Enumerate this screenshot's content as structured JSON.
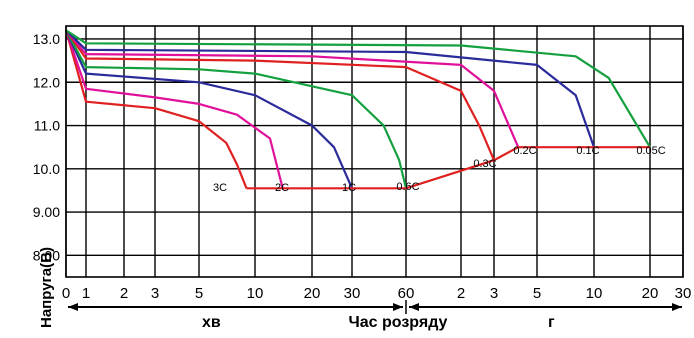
{
  "chart_data": {
    "type": "line",
    "title": "",
    "ylabel": "Напруга(В)",
    "xlabel": "Час розряду",
    "x_unit_minutes": "хв",
    "x_unit_hours": "г",
    "x_scale": "log",
    "ylim": [
      7.5,
      13.3
    ],
    "y_ticks": [
      "8.00",
      "9.00",
      "10.0",
      "11.0",
      "12.0",
      "13.0"
    ],
    "x_ticks_minutes": [
      "0",
      "1",
      "2",
      "3",
      "5",
      "10",
      "20",
      "30",
      "60"
    ],
    "x_ticks_hours": [
      "2",
      "3",
      "5",
      "10",
      "20",
      "30"
    ],
    "grid": true,
    "end_curve": {
      "name": "",
      "color": "#e02020",
      "points": [
        [
          9,
          9.55
        ],
        [
          60,
          9.55
        ],
        [
          180,
          10.2
        ],
        [
          240,
          10.5
        ],
        [
          1200,
          10.5
        ]
      ]
    },
    "series": [
      {
        "name": "3C",
        "color": "#e02020",
        "points": [
          [
            0,
            13.2
          ],
          [
            1,
            11.55
          ],
          [
            3,
            11.4
          ],
          [
            5,
            11.1
          ],
          [
            7,
            10.6
          ],
          [
            8,
            10.1
          ],
          [
            9,
            9.55
          ]
        ]
      },
      {
        "name": "2C",
        "color": "#e0109a",
        "points": [
          [
            0,
            13.2
          ],
          [
            1,
            11.85
          ],
          [
            3,
            11.65
          ],
          [
            5,
            11.5
          ],
          [
            8,
            11.25
          ],
          [
            12,
            10.7
          ],
          [
            14,
            9.55
          ]
        ]
      },
      {
        "name": "1C",
        "color": "#2a2a9a",
        "points": [
          [
            0,
            13.2
          ],
          [
            1,
            12.2
          ],
          [
            5,
            12.0
          ],
          [
            10,
            11.7
          ],
          [
            20,
            11.0
          ],
          [
            25,
            10.5
          ],
          [
            30,
            9.55
          ]
        ]
      },
      {
        "name": "0.6C",
        "color": "#15a040",
        "points": [
          [
            0,
            13.2
          ],
          [
            1,
            12.35
          ],
          [
            5,
            12.3
          ],
          [
            10,
            12.2
          ],
          [
            30,
            11.7
          ],
          [
            45,
            11.0
          ],
          [
            55,
            10.2
          ],
          [
            60,
            9.55
          ]
        ]
      },
      {
        "name": "0.3C",
        "color": "#e02020",
        "points": [
          [
            0,
            13.2
          ],
          [
            1,
            12.55
          ],
          [
            10,
            12.5
          ],
          [
            60,
            12.35
          ],
          [
            120,
            11.8
          ],
          [
            150,
            11.0
          ],
          [
            180,
            10.2
          ]
        ]
      },
      {
        "name": "0.2C",
        "color": "#e0109a",
        "points": [
          [
            0,
            13.2
          ],
          [
            1,
            12.65
          ],
          [
            20,
            12.6
          ],
          [
            120,
            12.4
          ],
          [
            180,
            11.8
          ],
          [
            240,
            10.5
          ]
        ]
      },
      {
        "name": "0.1C",
        "color": "#2a2a9a",
        "points": [
          [
            0,
            13.2
          ],
          [
            1,
            12.75
          ],
          [
            60,
            12.7
          ],
          [
            300,
            12.4
          ],
          [
            480,
            11.7
          ],
          [
            600,
            10.5
          ]
        ]
      },
      {
        "name": "0.05C",
        "color": "#15a040",
        "points": [
          [
            0,
            13.2
          ],
          [
            1,
            12.9
          ],
          [
            120,
            12.85
          ],
          [
            480,
            12.6
          ],
          [
            720,
            12.1
          ],
          [
            1200,
            10.5
          ]
        ]
      }
    ]
  },
  "colors": {
    "axis": "#000000",
    "grid": "#000000",
    "end_curve": "#e02020"
  }
}
